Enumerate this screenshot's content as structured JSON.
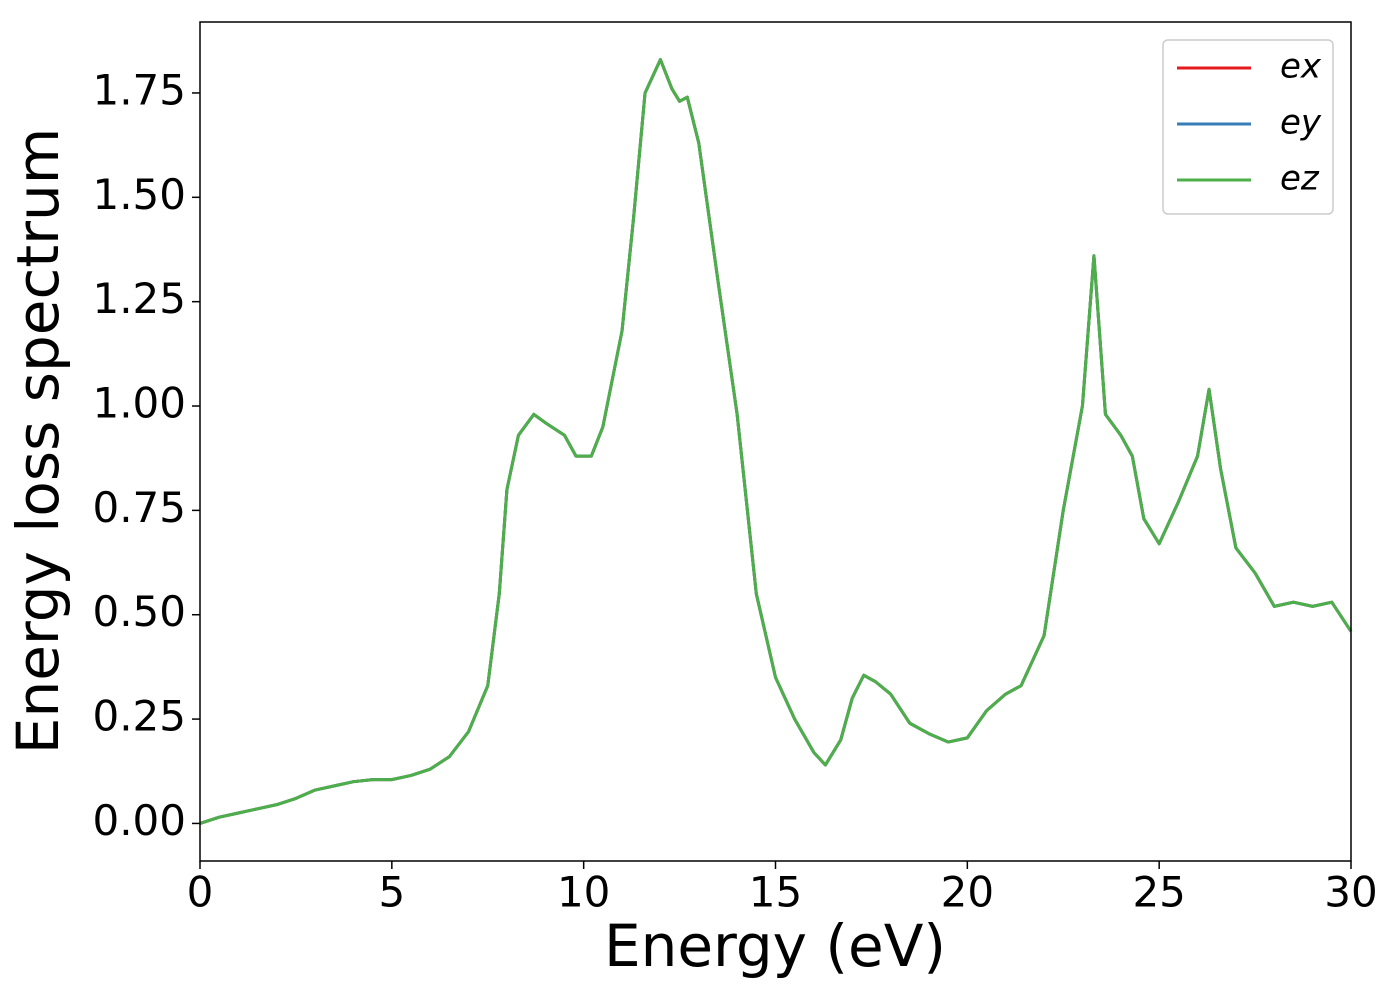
{
  "chart_data": {
    "type": "line",
    "xlabel": "Energy (eV)",
    "ylabel": "Energy loss spectrum",
    "x": [
      0,
      0.5,
      1,
      1.5,
      2,
      2.5,
      3,
      3.5,
      4,
      4.5,
      5,
      5.5,
      6,
      6.5,
      7,
      7.5,
      7.8,
      8,
      8.3,
      8.7,
      9,
      9.5,
      9.8,
      10.2,
      10.5,
      11,
      11.3,
      11.6,
      12,
      12.3,
      12.5,
      12.7,
      13,
      13.5,
      14,
      14.5,
      15,
      15.5,
      16,
      16.3,
      16.7,
      17,
      17.3,
      17.6,
      18,
      18.5,
      19,
      19.5,
      20,
      20.5,
      21,
      21.4,
      22,
      22.5,
      23,
      23.3,
      23.6,
      24,
      24.3,
      24.6,
      25,
      25.5,
      26,
      26.3,
      26.6,
      27,
      27.5,
      28,
      28.5,
      29,
      29.5,
      30
    ],
    "series": [
      {
        "name": "ex",
        "color": "#e41a1c",
        "values": [
          0,
          0.015,
          0.025,
          0.035,
          0.045,
          0.06,
          0.08,
          0.09,
          0.1,
          0.105,
          0.105,
          0.115,
          0.13,
          0.16,
          0.22,
          0.33,
          0.55,
          0.8,
          0.93,
          0.98,
          0.96,
          0.93,
          0.88,
          0.88,
          0.95,
          1.18,
          1.45,
          1.75,
          1.83,
          1.76,
          1.73,
          1.74,
          1.63,
          1.3,
          0.98,
          0.55,
          0.35,
          0.25,
          0.17,
          0.14,
          0.2,
          0.3,
          0.355,
          0.34,
          0.31,
          0.24,
          0.215,
          0.195,
          0.205,
          0.27,
          0.31,
          0.33,
          0.45,
          0.75,
          1.0,
          1.36,
          0.98,
          0.93,
          0.88,
          0.73,
          0.67,
          0.77,
          0.88,
          1.04,
          0.85,
          0.66,
          0.6,
          0.52,
          0.53,
          0.52,
          0.53,
          0.46
        ]
      },
      {
        "name": "ey",
        "color": "#377eb8",
        "values": [
          0,
          0.015,
          0.025,
          0.035,
          0.045,
          0.06,
          0.08,
          0.09,
          0.1,
          0.105,
          0.105,
          0.115,
          0.13,
          0.16,
          0.22,
          0.33,
          0.55,
          0.8,
          0.93,
          0.98,
          0.96,
          0.93,
          0.88,
          0.88,
          0.95,
          1.18,
          1.45,
          1.75,
          1.83,
          1.76,
          1.73,
          1.74,
          1.63,
          1.3,
          0.98,
          0.55,
          0.35,
          0.25,
          0.17,
          0.14,
          0.2,
          0.3,
          0.355,
          0.34,
          0.31,
          0.24,
          0.215,
          0.195,
          0.205,
          0.27,
          0.31,
          0.33,
          0.45,
          0.75,
          1.0,
          1.36,
          0.98,
          0.93,
          0.88,
          0.73,
          0.67,
          0.77,
          0.88,
          1.04,
          0.85,
          0.66,
          0.6,
          0.52,
          0.53,
          0.52,
          0.53,
          0.46
        ]
      },
      {
        "name": "ez",
        "color": "#4daf4a",
        "values": [
          0,
          0.015,
          0.025,
          0.035,
          0.045,
          0.06,
          0.08,
          0.09,
          0.1,
          0.105,
          0.105,
          0.115,
          0.13,
          0.16,
          0.22,
          0.33,
          0.55,
          0.8,
          0.93,
          0.98,
          0.96,
          0.93,
          0.88,
          0.88,
          0.95,
          1.18,
          1.45,
          1.75,
          1.83,
          1.76,
          1.73,
          1.74,
          1.63,
          1.3,
          0.98,
          0.55,
          0.35,
          0.25,
          0.17,
          0.14,
          0.2,
          0.3,
          0.355,
          0.34,
          0.31,
          0.24,
          0.215,
          0.195,
          0.205,
          0.27,
          0.31,
          0.33,
          0.45,
          0.75,
          1.0,
          1.36,
          0.98,
          0.93,
          0.88,
          0.73,
          0.67,
          0.77,
          0.88,
          1.04,
          0.85,
          0.66,
          0.6,
          0.52,
          0.53,
          0.52,
          0.53,
          0.46
        ]
      }
    ],
    "xlim": [
      0,
      30
    ],
    "ylim": [
      -0.09,
      1.92
    ],
    "xticks": [
      0,
      5,
      10,
      15,
      20,
      25,
      30
    ],
    "yticks": [
      {
        "value": 0,
        "label": "0.00"
      },
      {
        "value": 0.25,
        "label": "0.25"
      },
      {
        "value": 0.5,
        "label": "0.50"
      },
      {
        "value": 0.75,
        "label": "0.75"
      },
      {
        "value": 1,
        "label": "1.00"
      },
      {
        "value": 1.25,
        "label": "1.25"
      },
      {
        "value": 1.5,
        "label": "1.50"
      },
      {
        "value": 1.75,
        "label": "1.75"
      }
    ],
    "legend": "upper right"
  }
}
